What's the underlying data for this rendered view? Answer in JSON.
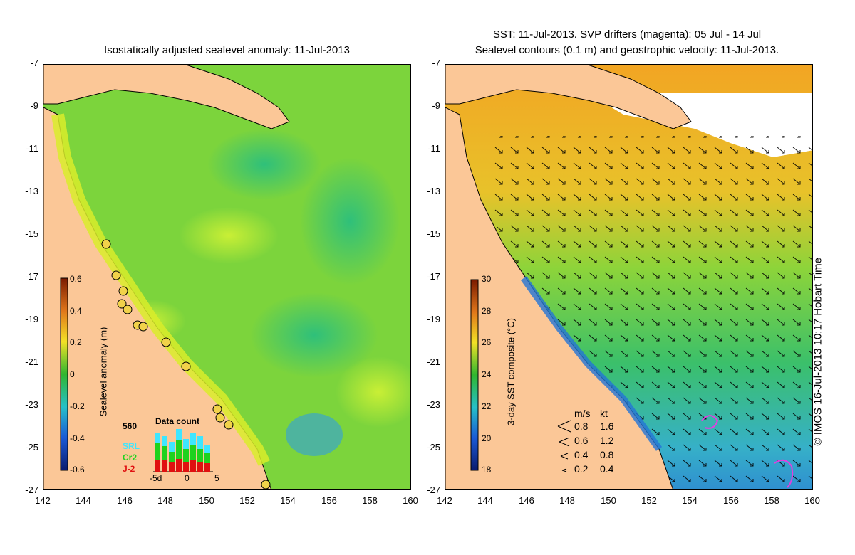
{
  "left": {
    "title": "Isostatically adjusted sealevel anomaly: 11-Jul-2013",
    "colorbar": {
      "label": "Sealevel anomaly (m)",
      "ticks": [
        "0.6",
        "0.4",
        "0.2",
        "0",
        "-0.2",
        "-0.4",
        "-0.6"
      ]
    },
    "data_count": {
      "number": "560",
      "title": "Data count",
      "legend": [
        {
          "label": "SRL",
          "color": "#3ee6ff"
        },
        {
          "label": "Cr2",
          "color": "#1ed21e"
        },
        {
          "label": "J-2",
          "color": "#e01010"
        }
      ],
      "x_ticks": [
        "-5d",
        "0",
        "5"
      ]
    }
  },
  "right": {
    "title_line1": "SST: 11-Jul-2013. SVP drifters (magenta): 05 Jul - 14 Jul",
    "title_line2": "Sealevel contours (0.1 m) and geostrophic velocity: 11-Jul-2013.",
    "colorbar": {
      "label": "3-day SST composite (°C)",
      "ticks": [
        "30",
        "28",
        "26",
        "24",
        "22",
        "20",
        "18"
      ]
    },
    "velocity_key": {
      "header_ms": "m/s",
      "header_kt": "kt",
      "rows": [
        {
          "ms": "0.8",
          "kt": "1.6"
        },
        {
          "ms": "0.6",
          "kt": "1.2"
        },
        {
          "ms": "0.4",
          "kt": "0.8"
        },
        {
          "ms": "0.2",
          "kt": "0.4"
        }
      ]
    },
    "credit": "© IMOS 16-Jul-2013 10:17 Hobart Time"
  },
  "y_axis": [
    "-7",
    "-9",
    "-11",
    "-13",
    "-15",
    "-17",
    "-19",
    "-21",
    "-23",
    "-25",
    "-27"
  ],
  "x_axis": [
    "142",
    "144",
    "146",
    "148",
    "150",
    "152",
    "154",
    "156",
    "158",
    "160"
  ],
  "colors": {
    "land": "#fbc797",
    "ocean_green": "#6fd23f",
    "sst_orange": "#f1a523"
  }
}
